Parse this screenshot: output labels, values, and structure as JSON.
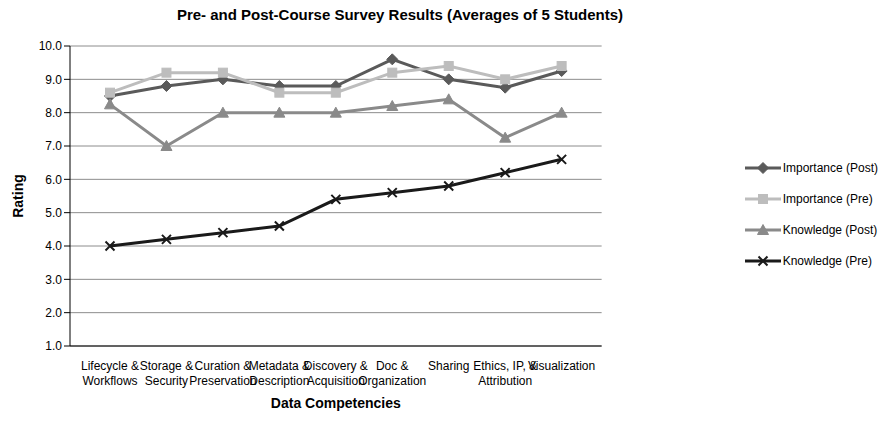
{
  "chart_data": {
    "type": "line",
    "title": "Pre- and Post-Course Survey Results (Averages of 5 Students)",
    "x_label": "Data Competencies",
    "y_label": "Rating",
    "categories": [
      "Lifecycle &\nWorkflows",
      "Storage &\nSecurity",
      "Curation &\nPreservation",
      "Metadata &\nDescription",
      "Discovery &\nAcquisition",
      "Doc &\nOrganization",
      "Sharing",
      "Ethics, IP, &\nAttribution",
      "Visualization"
    ],
    "series": [
      {
        "name": "Importance (Post)",
        "color": "#5a5a5a",
        "marker": "diamond",
        "values": [
          8.5,
          8.8,
          9.0,
          8.8,
          8.8,
          9.6,
          9.0,
          8.75,
          9.25
        ]
      },
      {
        "name": "Importance (Pre)",
        "color": "#bdbdbd",
        "marker": "square",
        "values": [
          8.6,
          9.2,
          9.2,
          8.6,
          8.6,
          9.2,
          9.4,
          9.0,
          9.4
        ]
      },
      {
        "name": "Knowledge (Post)",
        "color": "#8a8a8a",
        "marker": "triangle",
        "values": [
          8.25,
          7.0,
          8.0,
          8.0,
          8.0,
          8.2,
          8.4,
          7.25,
          8.0
        ]
      },
      {
        "name": "Knowledge (Pre)",
        "color": "#1a1a1a",
        "marker": "x",
        "values": [
          4.0,
          4.2,
          4.4,
          4.6,
          5.4,
          5.6,
          5.8,
          6.2,
          6.6
        ]
      }
    ],
    "ylim": [
      1,
      10
    ],
    "yticks": [
      {
        "value": 1,
        "label": "1.0"
      },
      {
        "value": 2,
        "label": "2.0"
      },
      {
        "value": 3,
        "label": "3.0"
      },
      {
        "value": 4,
        "label": "4.0"
      },
      {
        "value": 5,
        "label": "5.0"
      },
      {
        "value": 6,
        "label": "6.0"
      },
      {
        "value": 7,
        "label": "7.0"
      },
      {
        "value": 8,
        "label": "8.0"
      },
      {
        "value": 9,
        "label": "9.0"
      },
      {
        "value": 10,
        "label": "10.0"
      }
    ],
    "grid": true,
    "legend": "right"
  }
}
